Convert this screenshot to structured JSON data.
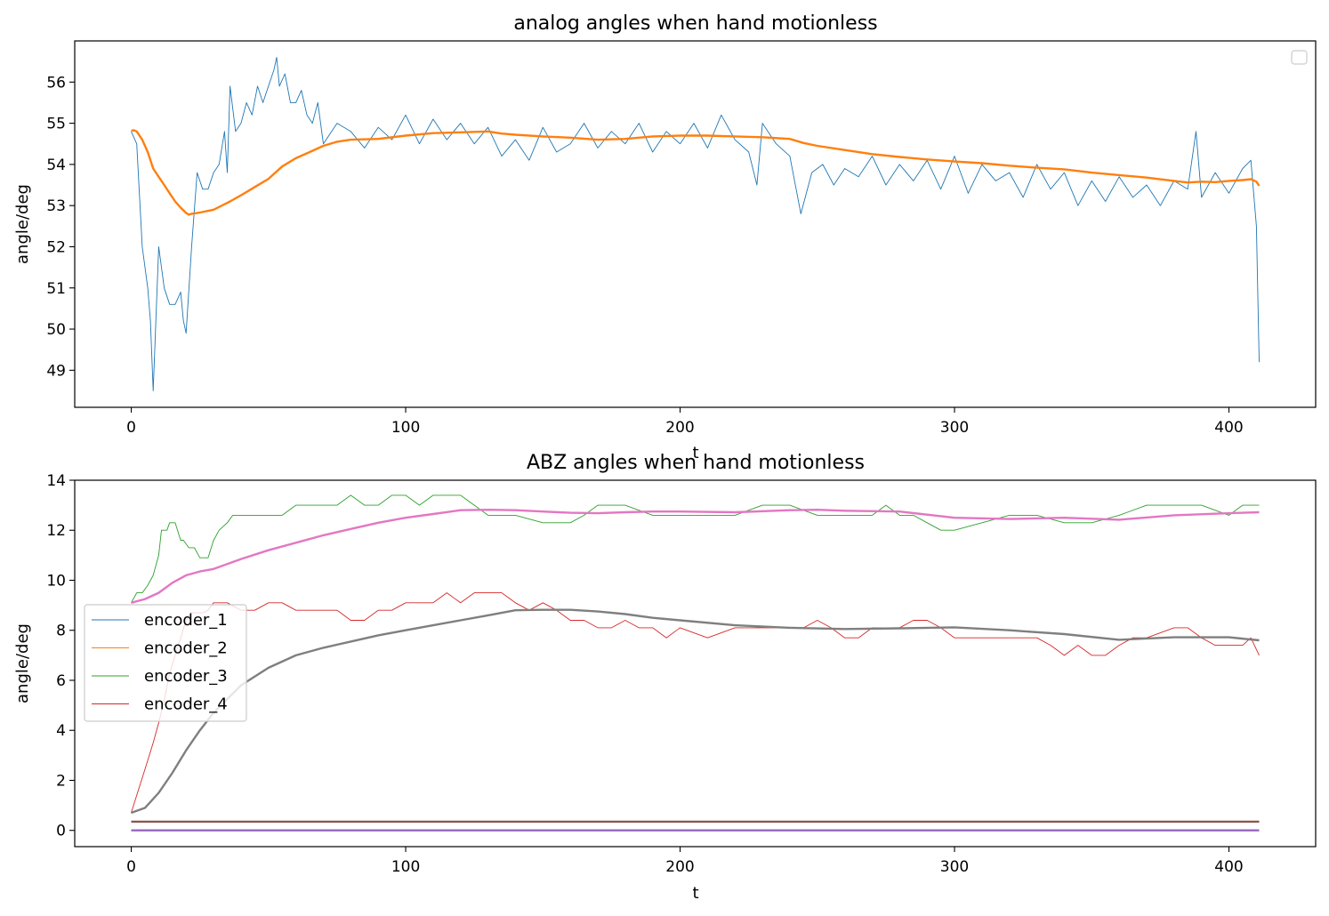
{
  "chart_data": [
    {
      "type": "line",
      "title": "analog angles when hand motionless",
      "xlabel": "t",
      "ylabel": "angle/deg",
      "xlim": [
        -20.6,
        431.6
      ],
      "ylim": [
        48.1,
        57.0
      ],
      "xticks": [
        "0",
        "100",
        "200",
        "300",
        "400"
      ],
      "xtick_values": [
        0,
        100,
        200,
        300,
        400
      ],
      "yticks": [
        "49",
        "50",
        "51",
        "52",
        "53",
        "54",
        "55",
        "56"
      ],
      "ytick_values": [
        49,
        50,
        51,
        52,
        53,
        54,
        55,
        56
      ],
      "legend": {
        "location": "upper right",
        "entries": []
      },
      "grid": false,
      "series": [
        {
          "color": "#1f77b4",
          "style": "thin-noisy",
          "x": [
            0,
            2,
            4,
            6,
            7,
            8,
            10,
            12,
            14,
            16,
            18,
            19,
            20,
            22,
            24,
            26,
            28,
            30,
            32,
            34,
            35,
            36,
            38,
            40,
            42,
            44,
            46,
            48,
            50,
            52,
            53,
            54,
            56,
            58,
            60,
            62,
            64,
            66,
            68,
            70,
            75,
            80,
            85,
            90,
            95,
            100,
            105,
            110,
            115,
            120,
            125,
            130,
            135,
            140,
            145,
            150,
            155,
            160,
            165,
            170,
            175,
            180,
            185,
            190,
            195,
            200,
            205,
            210,
            215,
            220,
            225,
            228,
            230,
            235,
            240,
            244,
            248,
            252,
            256,
            260,
            265,
            270,
            275,
            280,
            285,
            290,
            295,
            300,
            305,
            310,
            315,
            320,
            325,
            330,
            335,
            340,
            345,
            350,
            355,
            360,
            365,
            370,
            375,
            380,
            385,
            388,
            390,
            395,
            400,
            405,
            408,
            410,
            411
          ],
          "values": [
            54.8,
            54.5,
            52.0,
            51.0,
            50.2,
            48.5,
            52.0,
            51.0,
            50.6,
            50.6,
            50.9,
            50.2,
            49.9,
            52.0,
            53.8,
            53.4,
            53.4,
            53.8,
            54.0,
            54.8,
            53.8,
            55.9,
            54.8,
            55.0,
            55.5,
            55.2,
            55.9,
            55.5,
            55.9,
            56.3,
            56.6,
            55.9,
            56.2,
            55.5,
            55.5,
            55.8,
            55.2,
            55.0,
            55.5,
            54.5,
            55.0,
            54.8,
            54.4,
            54.9,
            54.6,
            55.2,
            54.5,
            55.1,
            54.6,
            55.0,
            54.5,
            54.9,
            54.2,
            54.6,
            54.1,
            54.9,
            54.3,
            54.5,
            55.0,
            54.4,
            54.8,
            54.5,
            55.0,
            54.3,
            54.8,
            54.5,
            55.0,
            54.4,
            55.2,
            54.6,
            54.3,
            53.5,
            55.0,
            54.5,
            54.2,
            52.8,
            53.8,
            54.0,
            53.5,
            53.9,
            53.7,
            54.2,
            53.5,
            54.0,
            53.6,
            54.1,
            53.4,
            54.2,
            53.3,
            54.0,
            53.6,
            53.8,
            53.2,
            54.0,
            53.4,
            53.8,
            53.0,
            53.6,
            53.1,
            53.7,
            53.2,
            53.5,
            53.0,
            53.6,
            53.4,
            54.8,
            53.2,
            53.8,
            53.3,
            53.9,
            54.1,
            52.5,
            49.2
          ]
        },
        {
          "color": "#ff7f0e",
          "style": "smooth",
          "x": [
            0,
            1,
            2,
            4,
            6,
            8,
            10,
            12,
            14,
            16,
            18,
            20,
            21,
            22,
            25,
            30,
            33,
            36,
            40,
            45,
            50,
            55,
            60,
            65,
            70,
            75,
            80,
            90,
            100,
            110,
            120,
            130,
            135,
            140,
            150,
            160,
            170,
            180,
            190,
            200,
            210,
            220,
            230,
            240,
            245,
            250,
            260,
            270,
            280,
            290,
            300,
            310,
            320,
            330,
            340,
            350,
            360,
            370,
            380,
            385,
            390,
            395,
            400,
            405,
            408,
            410,
            411
          ],
          "values": [
            54.82,
            54.83,
            54.8,
            54.6,
            54.3,
            53.9,
            53.7,
            53.5,
            53.3,
            53.1,
            52.95,
            52.82,
            52.78,
            52.8,
            52.83,
            52.9,
            53.0,
            53.1,
            53.25,
            53.45,
            53.65,
            53.95,
            54.15,
            54.3,
            54.45,
            54.55,
            54.6,
            54.62,
            54.7,
            54.76,
            54.78,
            54.8,
            54.75,
            54.72,
            54.68,
            54.65,
            54.6,
            54.62,
            54.68,
            54.7,
            54.7,
            54.68,
            54.66,
            54.62,
            54.52,
            54.45,
            54.35,
            54.25,
            54.18,
            54.12,
            54.07,
            54.03,
            53.97,
            53.92,
            53.88,
            53.8,
            53.74,
            53.68,
            53.6,
            53.56,
            53.58,
            53.57,
            53.6,
            53.62,
            53.64,
            53.58,
            53.48
          ]
        }
      ]
    },
    {
      "type": "line",
      "title": "ABZ angles when hand motionless",
      "xlabel": "t",
      "ylabel": "angle/deg",
      "xlim": [
        -20.6,
        431.6
      ],
      "ylim": [
        -0.65,
        14.0
      ],
      "xticks": [
        "0",
        "100",
        "200",
        "300",
        "400"
      ],
      "xtick_values": [
        0,
        100,
        200,
        300,
        400
      ],
      "yticks": [
        "0",
        "2",
        "4",
        "6",
        "8",
        "10",
        "12",
        "14"
      ],
      "ytick_values": [
        0,
        2,
        4,
        6,
        8,
        10,
        12,
        14
      ],
      "legend": {
        "location": "center left",
        "entries": [
          "encoder_1",
          "encoder_2",
          "encoder_3",
          "encoder_4"
        ]
      },
      "legend_colors": [
        "#1f77b4",
        "#ff7f0e",
        "#2ca02c",
        "#d62728"
      ],
      "grid": false,
      "series": [
        {
          "name": "encoder_1",
          "color": "#1f77b4",
          "style": "thin",
          "x": [
            0,
            411
          ],
          "values": [
            0.35,
            0.35
          ]
        },
        {
          "name": "encoder_2",
          "color": "#ff7f0e",
          "style": "thin",
          "x": [
            0,
            411
          ],
          "values": [
            0.35,
            0.35
          ]
        },
        {
          "name": "encoder_3",
          "color": "#2ca02c",
          "style": "thin-step",
          "x": [
            0,
            2,
            4,
            6,
            8,
            10,
            11,
            13,
            14,
            16,
            18,
            19,
            21,
            23,
            25,
            28,
            30,
            32,
            35,
            37,
            40,
            45,
            50,
            55,
            60,
            70,
            75,
            80,
            85,
            90,
            95,
            100,
            105,
            110,
            115,
            120,
            125,
            130,
            135,
            140,
            150,
            160,
            165,
            170,
            175,
            180,
            190,
            200,
            210,
            220,
            230,
            240,
            250,
            260,
            270,
            275,
            280,
            285,
            290,
            295,
            300,
            310,
            320,
            330,
            340,
            350,
            360,
            370,
            380,
            390,
            400,
            405,
            411
          ],
          "values": [
            9.1,
            9.5,
            9.5,
            9.8,
            10.2,
            11.0,
            12.0,
            12.0,
            12.3,
            12.3,
            11.6,
            11.6,
            11.3,
            11.3,
            10.9,
            10.9,
            11.6,
            12.0,
            12.3,
            12.6,
            12.6,
            12.6,
            12.6,
            12.6,
            13.0,
            13.0,
            13.0,
            13.4,
            13.0,
            13.0,
            13.4,
            13.4,
            13.0,
            13.4,
            13.4,
            13.4,
            13.0,
            12.6,
            12.6,
            12.6,
            12.3,
            12.3,
            12.6,
            13.0,
            13.0,
            13.0,
            12.6,
            12.6,
            12.6,
            12.6,
            13.0,
            13.0,
            12.6,
            12.6,
            12.6,
            13.0,
            12.6,
            12.6,
            12.3,
            12.0,
            12.0,
            12.3,
            12.6,
            12.6,
            12.3,
            12.3,
            12.6,
            13.0,
            13.0,
            13.0,
            12.6,
            13.0,
            13.0
          ]
        },
        {
          "name": "encoder_4",
          "color": "#d62728",
          "style": "thin-step",
          "x": [
            0,
            2,
            4,
            6,
            8,
            10,
            12,
            14,
            16,
            18,
            20,
            22,
            24,
            26,
            28,
            30,
            35,
            40,
            45,
            50,
            55,
            60,
            65,
            70,
            75,
            80,
            85,
            90,
            95,
            100,
            105,
            110,
            115,
            120,
            125,
            130,
            135,
            140,
            145,
            150,
            155,
            160,
            165,
            170,
            175,
            180,
            185,
            190,
            195,
            200,
            210,
            220,
            225,
            230,
            240,
            245,
            250,
            255,
            260,
            265,
            270,
            275,
            280,
            285,
            290,
            295,
            300,
            310,
            320,
            330,
            335,
            340,
            345,
            350,
            355,
            360,
            365,
            370,
            380,
            385,
            390,
            395,
            400,
            405,
            408,
            411
          ],
          "values": [
            0.7,
            1.4,
            2.1,
            2.8,
            3.5,
            4.3,
            5.2,
            6.3,
            7.0,
            7.7,
            8.4,
            8.7,
            8.7,
            8.7,
            8.8,
            9.1,
            9.1,
            8.8,
            8.8,
            9.1,
            9.1,
            8.8,
            8.8,
            8.8,
            8.8,
            8.4,
            8.4,
            8.8,
            8.8,
            9.1,
            9.1,
            9.1,
            9.5,
            9.1,
            9.5,
            9.5,
            9.5,
            9.1,
            8.8,
            9.1,
            8.8,
            8.4,
            8.4,
            8.1,
            8.1,
            8.4,
            8.1,
            8.1,
            7.7,
            8.1,
            7.7,
            8.1,
            8.1,
            8.1,
            8.1,
            8.1,
            8.4,
            8.1,
            7.7,
            7.7,
            8.1,
            8.1,
            8.1,
            8.4,
            8.4,
            8.1,
            7.7,
            7.7,
            7.7,
            7.7,
            7.4,
            7.0,
            7.4,
            7.0,
            7.0,
            7.4,
            7.7,
            7.7,
            8.1,
            8.1,
            7.7,
            7.4,
            7.4,
            7.4,
            7.7,
            7.0
          ]
        },
        {
          "color": "#9467bd",
          "style": "smooth",
          "x": [
            0,
            411
          ],
          "values": [
            0.0,
            0.0
          ]
        },
        {
          "color": "#8c564b",
          "style": "smooth",
          "x": [
            0,
            411
          ],
          "values": [
            0.35,
            0.35
          ]
        },
        {
          "color": "#e377c2",
          "style": "smooth",
          "x": [
            0,
            5,
            10,
            15,
            20,
            25,
            30,
            40,
            50,
            60,
            70,
            80,
            90,
            100,
            110,
            120,
            130,
            140,
            150,
            160,
            170,
            180,
            190,
            200,
            220,
            240,
            250,
            260,
            280,
            300,
            320,
            340,
            360,
            380,
            400,
            411
          ],
          "values": [
            9.1,
            9.25,
            9.5,
            9.9,
            10.2,
            10.35,
            10.45,
            10.85,
            11.2,
            11.5,
            11.8,
            12.05,
            12.3,
            12.5,
            12.65,
            12.8,
            12.82,
            12.8,
            12.75,
            12.7,
            12.68,
            12.72,
            12.75,
            12.75,
            12.72,
            12.8,
            12.82,
            12.78,
            12.75,
            12.5,
            12.45,
            12.5,
            12.42,
            12.6,
            12.68,
            12.72
          ]
        },
        {
          "color": "#7f7f7f",
          "style": "smooth",
          "x": [
            0,
            5,
            10,
            15,
            20,
            25,
            30,
            40,
            50,
            60,
            70,
            80,
            90,
            100,
            110,
            120,
            130,
            140,
            150,
            160,
            170,
            180,
            190,
            200,
            220,
            240,
            260,
            280,
            300,
            320,
            340,
            360,
            380,
            400,
            411
          ],
          "values": [
            0.7,
            0.9,
            1.5,
            2.3,
            3.2,
            4.0,
            4.7,
            5.8,
            6.5,
            7.0,
            7.3,
            7.55,
            7.8,
            8.0,
            8.2,
            8.4,
            8.6,
            8.8,
            8.82,
            8.82,
            8.75,
            8.65,
            8.5,
            8.4,
            8.2,
            8.1,
            8.05,
            8.08,
            8.12,
            8.0,
            7.85,
            7.62,
            7.72,
            7.72,
            7.6
          ]
        }
      ]
    }
  ]
}
